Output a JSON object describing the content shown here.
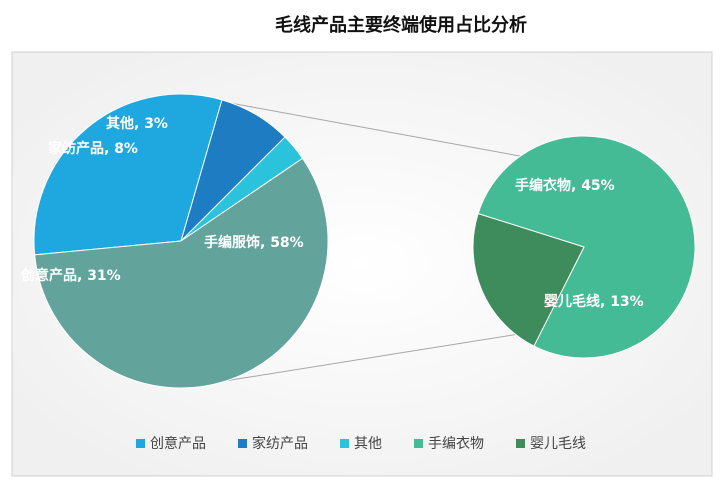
{
  "chart_data": {
    "type": "pie",
    "subtype": "pie-of-pie",
    "title": "毛线产品主要终端使用占比分析",
    "main_pie": {
      "slices": [
        {
          "label": "创意产品",
          "value": 31,
          "display": "创意产品, 31%",
          "color": "#1fa8e0"
        },
        {
          "label": "家纺产品",
          "value": 8,
          "display": "家纺产品, 8%",
          "color": "#1d7cc2"
        },
        {
          "label": "其他",
          "value": 3,
          "display": "其他, 3%",
          "color": "#2ac3db"
        },
        {
          "label": "手编服饰",
          "value": 58,
          "display": "手编服饰, 58%",
          "color": "#62a39c"
        }
      ]
    },
    "sub_pie": {
      "parent": "手编服饰",
      "slices": [
        {
          "label": "手编衣物",
          "value": 45,
          "display": "手编衣物, 45%",
          "color": "#44bb94"
        },
        {
          "label": "婴儿毛线",
          "value": 13,
          "display": "婴儿毛线, 13%",
          "color": "#3e8b5b"
        }
      ]
    },
    "legend": {
      "position": "bottom",
      "entries": [
        {
          "label": "创意产品",
          "color": "#1fa8e0"
        },
        {
          "label": "家纺产品",
          "color": "#1d7cc2"
        },
        {
          "label": "其他",
          "color": "#2ac3db"
        },
        {
          "label": "手编衣物",
          "color": "#44bb94"
        },
        {
          "label": "婴儿毛线",
          "color": "#3e8b5b"
        }
      ]
    },
    "colors": {
      "background": "#ffffff",
      "plot_area": "#f2f2f2",
      "border": "#d0d0d0",
      "connector": "#a6a6a6"
    }
  }
}
